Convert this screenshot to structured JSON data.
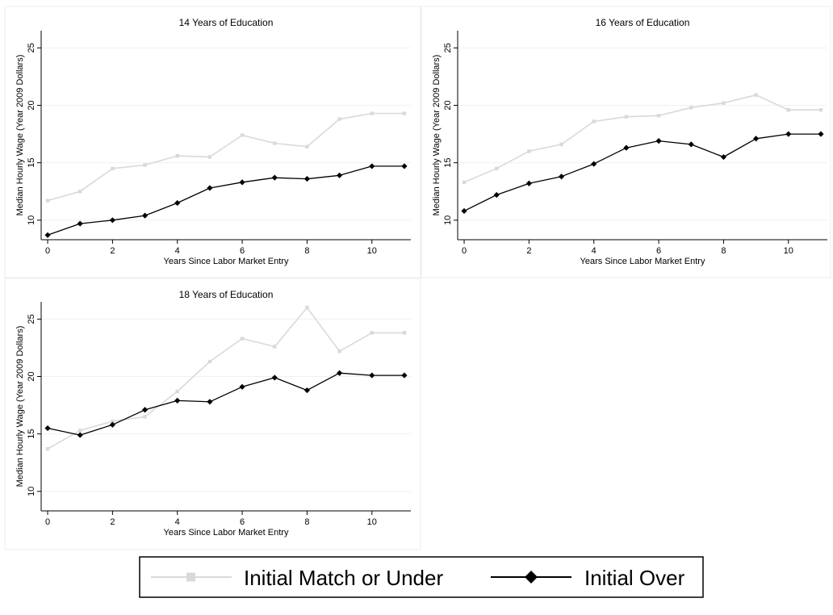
{
  "legend": {
    "items": [
      {
        "label": "Initial Match or Under",
        "color": "#d9d9d9",
        "marker": "square"
      },
      {
        "label": "Initial Over",
        "color": "#000000",
        "marker": "diamond"
      }
    ]
  },
  "chart_data": [
    {
      "type": "line",
      "title": "14 Years of Education",
      "xlabel": "Years Since Labor Market Entry",
      "ylabel": "Median Hourly Wage (Year 2009 Dollars)",
      "x": [
        0,
        1,
        2,
        3,
        4,
        5,
        6,
        7,
        8,
        9,
        10,
        11
      ],
      "xticks": [
        0,
        2,
        4,
        6,
        8,
        10
      ],
      "yticks": [
        10,
        15,
        20,
        25
      ],
      "xlim": [
        -0.2,
        11.2
      ],
      "ylim": [
        8.3,
        26.5
      ],
      "grid": true,
      "series": [
        {
          "name": "Initial Match or Under",
          "color": "#d9d9d9",
          "values": [
            11.7,
            12.5,
            14.5,
            14.8,
            15.6,
            15.5,
            17.4,
            16.7,
            16.4,
            18.8,
            19.3,
            19.3
          ]
        },
        {
          "name": "Initial Over",
          "color": "#000000",
          "values": [
            8.7,
            9.7,
            10.0,
            10.4,
            11.5,
            12.8,
            13.3,
            13.7,
            13.6,
            13.9,
            14.7,
            14.7
          ]
        }
      ]
    },
    {
      "type": "line",
      "title": "16 Years of Education",
      "xlabel": "Years Since Labor Market Entry",
      "ylabel": "Median Hourly Wage (Year 2009 Dollars)",
      "x": [
        0,
        1,
        2,
        3,
        4,
        5,
        6,
        7,
        8,
        9,
        10,
        11
      ],
      "xticks": [
        0,
        2,
        4,
        6,
        8,
        10
      ],
      "yticks": [
        10,
        15,
        20,
        25
      ],
      "xlim": [
        -0.2,
        11.2
      ],
      "ylim": [
        8.3,
        26.5
      ],
      "grid": true,
      "series": [
        {
          "name": "Initial Match or Under",
          "color": "#d9d9d9",
          "values": [
            13.3,
            14.5,
            16.0,
            16.6,
            18.6,
            19.0,
            19.1,
            19.8,
            20.2,
            20.9,
            19.6,
            19.6
          ]
        },
        {
          "name": "Initial Over",
          "color": "#000000",
          "values": [
            10.8,
            12.2,
            13.2,
            13.8,
            14.9,
            16.3,
            16.9,
            16.6,
            15.5,
            17.1,
            17.5,
            17.5
          ]
        }
      ]
    },
    {
      "type": "line",
      "title": "18 Years of Education",
      "xlabel": "Years Since Labor Market Entry",
      "ylabel": "Median Hourly Wage (Year 2009 Dollars)",
      "x": [
        0,
        1,
        2,
        3,
        4,
        5,
        6,
        7,
        8,
        9,
        10,
        11
      ],
      "xticks": [
        0,
        2,
        4,
        6,
        8,
        10
      ],
      "yticks": [
        10,
        15,
        20,
        25
      ],
      "xlim": [
        -0.2,
        11.2
      ],
      "ylim": [
        8.3,
        26.5
      ],
      "grid": true,
      "series": [
        {
          "name": "Initial Match or Under",
          "color": "#d9d9d9",
          "values": [
            13.7,
            15.3,
            16.1,
            16.5,
            18.7,
            21.3,
            23.3,
            22.6,
            26.0,
            22.2,
            23.8,
            23.8
          ]
        },
        {
          "name": "Initial Over",
          "color": "#000000",
          "values": [
            15.5,
            14.9,
            15.8,
            17.1,
            17.9,
            17.8,
            19.1,
            19.9,
            18.8,
            20.3,
            20.1,
            20.1
          ]
        }
      ]
    }
  ]
}
